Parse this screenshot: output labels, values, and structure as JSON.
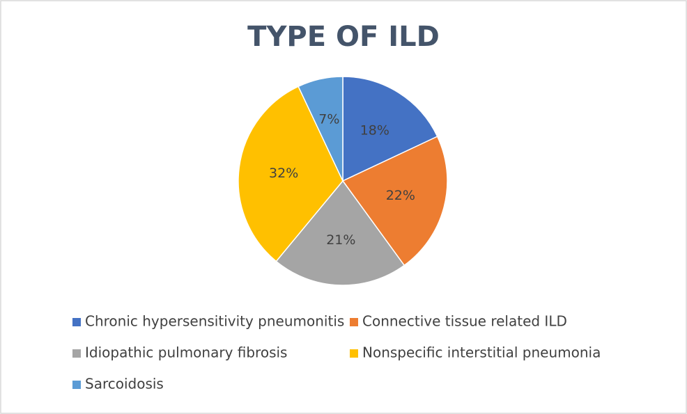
{
  "chart_data": {
    "type": "pie",
    "title": "TYPE OF ILD",
    "categories": [
      "Chronic hypersensitivity pneumonitis",
      "Connective tissue related ILD",
      "Idiopathic pulmonary fibrosis",
      "Nonspecific interstitial pneumonia",
      "Sarcoidosis"
    ],
    "values": [
      18,
      22,
      21,
      32,
      7
    ],
    "value_labels": [
      "18%",
      "22%",
      "21%",
      "32%",
      "7%"
    ],
    "colors": [
      "#4472c4",
      "#ed7d31",
      "#a5a5a5",
      "#ffc000",
      "#5b9bd5"
    ],
    "legend": "bottom"
  }
}
